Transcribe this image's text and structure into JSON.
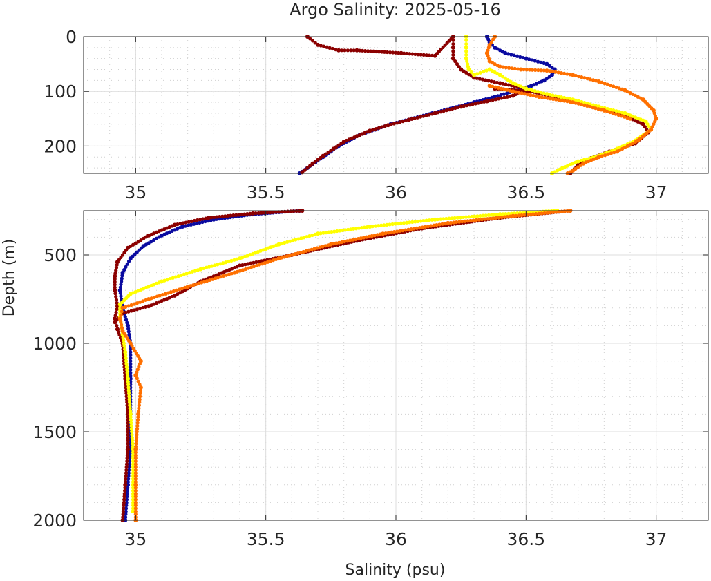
{
  "figure": {
    "title": "Argo Salinity: 2025-05-16",
    "xlabel": "Salinity (psu)",
    "ylabel": "Depth (m)"
  },
  "colors": {
    "series": [
      "#0a0aa0",
      "#8b0000",
      "#ffff00",
      "#ff7000"
    ],
    "grid_major": "#dcdcdc",
    "grid_minor": "#d0d0d0",
    "axes": "#262626"
  },
  "chart_data": [
    {
      "name": "upper",
      "type": "scatter",
      "xlim": [
        34.8,
        37.2
      ],
      "ylim": [
        0,
        250
      ],
      "y_reversed": true,
      "xticks": [
        35,
        35.5,
        36,
        36.5,
        37
      ],
      "xtick_labels": [
        "35",
        "35.5",
        "36",
        "36.5",
        "37"
      ],
      "yticks": [
        0,
        100,
        200
      ],
      "ytick_labels": [
        "0",
        "100",
        "200"
      ],
      "grid": true,
      "minor_grid": true,
      "series": [
        {
          "color": "#0a0aa0",
          "points": [
            [
              36.35,
              0
            ],
            [
              36.36,
              10
            ],
            [
              36.38,
              20
            ],
            [
              36.42,
              30
            ],
            [
              36.5,
              40
            ],
            [
              36.58,
              50
            ],
            [
              36.61,
              60
            ],
            [
              36.6,
              70
            ],
            [
              36.57,
              80
            ],
            [
              36.52,
              90
            ],
            [
              36.45,
              100
            ],
            [
              36.38,
              110
            ],
            [
              36.3,
              120
            ],
            [
              36.22,
              130
            ],
            [
              36.14,
              140
            ],
            [
              36.06,
              150
            ],
            [
              35.98,
              160
            ],
            [
              35.92,
              170
            ],
            [
              35.86,
              180
            ],
            [
              35.82,
              190
            ],
            [
              35.78,
              200
            ],
            [
              35.75,
              210
            ],
            [
              35.72,
              220
            ],
            [
              35.69,
              230
            ],
            [
              35.66,
              240
            ],
            [
              35.63,
              250
            ]
          ]
        },
        {
          "color": "#8b0000",
          "points": [
            [
              35.66,
              0
            ],
            [
              35.7,
              15
            ],
            [
              35.78,
              25
            ],
            [
              35.85,
              25
            ],
            [
              36.02,
              30
            ],
            [
              36.15,
              35
            ],
            [
              36.22,
              0
            ],
            [
              36.22,
              20
            ],
            [
              36.22,
              40
            ],
            [
              36.25,
              60
            ],
            [
              36.3,
              75
            ],
            [
              36.4,
              85
            ],
            [
              36.5,
              95
            ],
            [
              36.45,
              108
            ],
            [
              36.35,
              118
            ],
            [
              36.25,
              128
            ],
            [
              36.15,
              140
            ],
            [
              36.05,
              152
            ],
            [
              35.97,
              162
            ],
            [
              35.9,
              172
            ],
            [
              35.85,
              182
            ],
            [
              35.8,
              192
            ],
            [
              35.76,
              205
            ],
            [
              35.72,
              218
            ],
            [
              35.68,
              232
            ],
            [
              35.64,
              248
            ],
            [
              36.38,
              95
            ],
            [
              36.52,
              100
            ],
            [
              36.65,
              115
            ],
            [
              36.78,
              130
            ],
            [
              36.88,
              145
            ],
            [
              36.95,
              160
            ],
            [
              36.97,
              175
            ],
            [
              36.92,
              195
            ],
            [
              36.82,
              210
            ],
            [
              36.75,
              222
            ],
            [
              36.7,
              235
            ],
            [
              36.67,
              250
            ]
          ]
        },
        {
          "color": "#ffff00",
          "points": [
            [
              36.27,
              0
            ],
            [
              36.27,
              20
            ],
            [
              36.27,
              40
            ],
            [
              36.28,
              60
            ],
            [
              36.3,
              70
            ],
            [
              36.36,
              60
            ],
            [
              36.4,
              70
            ],
            [
              36.45,
              85
            ],
            [
              36.5,
              95
            ],
            [
              36.58,
              105
            ],
            [
              36.68,
              115
            ],
            [
              36.78,
              128
            ],
            [
              36.88,
              140
            ],
            [
              36.96,
              155
            ],
            [
              36.98,
              170
            ],
            [
              36.92,
              190
            ],
            [
              36.85,
              205
            ],
            [
              36.78,
              218
            ],
            [
              36.7,
              228
            ],
            [
              36.64,
              240
            ],
            [
              36.6,
              250
            ]
          ]
        },
        {
          "color": "#ff7000",
          "points": [
            [
              36.38,
              0
            ],
            [
              36.36,
              15
            ],
            [
              36.35,
              30
            ],
            [
              36.36,
              45
            ],
            [
              36.4,
              55
            ],
            [
              36.48,
              60
            ],
            [
              36.58,
              62
            ],
            [
              36.68,
              70
            ],
            [
              36.78,
              82
            ],
            [
              36.88,
              98
            ],
            [
              36.95,
              115
            ],
            [
              36.99,
              135
            ],
            [
              37.0,
              150
            ],
            [
              36.98,
              170
            ],
            [
              36.93,
              190
            ],
            [
              36.85,
              210
            ],
            [
              36.78,
              220
            ],
            [
              36.72,
              232
            ],
            [
              36.68,
              245
            ],
            [
              36.66,
              250
            ],
            [
              36.36,
              90
            ],
            [
              36.45,
              100
            ],
            [
              36.55,
              110
            ],
            [
              36.68,
              120
            ],
            [
              36.8,
              135
            ],
            [
              36.9,
              150
            ]
          ]
        }
      ]
    },
    {
      "name": "lower",
      "type": "scatter",
      "xlim": [
        34.8,
        37.2
      ],
      "ylim": [
        250,
        2000
      ],
      "y_reversed": true,
      "xticks": [
        35,
        35.5,
        36,
        36.5,
        37
      ],
      "xtick_labels": [
        "35",
        "35.5",
        "36",
        "36.5",
        "37"
      ],
      "yticks": [
        500,
        1000,
        1500,
        2000
      ],
      "ytick_labels": [
        "500",
        "1000",
        "1500",
        "2000"
      ],
      "grid": true,
      "minor_grid": true,
      "series": [
        {
          "color": "#0a0aa0",
          "points": [
            [
              35.63,
              250
            ],
            [
              35.45,
              270
            ],
            [
              35.3,
              300
            ],
            [
              35.18,
              340
            ],
            [
              35.1,
              390
            ],
            [
              35.03,
              450
            ],
            [
              34.98,
              520
            ],
            [
              34.95,
              600
            ],
            [
              34.94,
              700
            ],
            [
              34.95,
              800
            ],
            [
              34.97,
              900
            ],
            [
              34.98,
              1000
            ],
            [
              34.98,
              1200
            ],
            [
              34.98,
              1400
            ],
            [
              34.98,
              1600
            ],
            [
              34.97,
              1800
            ],
            [
              34.96,
              2000
            ]
          ]
        },
        {
          "color": "#8b0000",
          "points": [
            [
              35.64,
              250
            ],
            [
              35.45,
              265
            ],
            [
              35.28,
              290
            ],
            [
              35.15,
              330
            ],
            [
              35.05,
              390
            ],
            [
              34.97,
              460
            ],
            [
              34.93,
              540
            ],
            [
              34.92,
              620
            ],
            [
              34.92,
              700
            ],
            [
              34.93,
              790
            ],
            [
              34.92,
              860
            ],
            [
              34.93,
              920
            ],
            [
              34.95,
              1000
            ],
            [
              34.96,
              1200
            ],
            [
              34.97,
              1400
            ],
            [
              34.97,
              1600
            ],
            [
              34.96,
              1800
            ],
            [
              34.95,
              2000
            ],
            [
              36.67,
              250
            ],
            [
              36.4,
              290
            ],
            [
              36.1,
              350
            ],
            [
              35.85,
              420
            ],
            [
              35.6,
              500
            ],
            [
              35.4,
              560
            ],
            [
              35.25,
              650
            ],
            [
              35.15,
              730
            ],
            [
              35.05,
              790
            ],
            [
              34.95,
              830
            ],
            [
              34.92,
              880
            ]
          ]
        },
        {
          "color": "#ffff00",
          "points": [
            [
              36.62,
              250
            ],
            [
              36.4,
              270
            ],
            [
              36.15,
              300
            ],
            [
              35.9,
              340
            ],
            [
              35.7,
              380
            ],
            [
              35.55,
              440
            ],
            [
              35.4,
              520
            ],
            [
              35.25,
              580
            ],
            [
              35.1,
              650
            ],
            [
              34.98,
              720
            ],
            [
              34.94,
              780
            ],
            [
              34.94,
              850
            ],
            [
              34.95,
              950
            ],
            [
              34.96,
              1050
            ],
            [
              34.97,
              1200
            ],
            [
              34.98,
              1400
            ],
            [
              34.99,
              1600
            ],
            [
              34.99,
              1800
            ],
            [
              34.99,
              1950
            ]
          ]
        },
        {
          "color": "#ff7000",
          "points": [
            [
              36.67,
              250
            ],
            [
              36.45,
              280
            ],
            [
              36.2,
              320
            ],
            [
              35.95,
              380
            ],
            [
              35.75,
              440
            ],
            [
              35.55,
              520
            ],
            [
              35.38,
              600
            ],
            [
              35.2,
              680
            ],
            [
              35.05,
              750
            ],
            [
              34.95,
              800
            ],
            [
              34.94,
              860
            ],
            [
              34.95,
              930
            ],
            [
              34.98,
              1000
            ],
            [
              35.02,
              1100
            ],
            [
              35.0,
              1180
            ],
            [
              35.02,
              1250
            ],
            [
              35.01,
              1400
            ],
            [
              35.0,
              1600
            ],
            [
              35.0,
              1800
            ],
            [
              35.0,
              2000
            ]
          ]
        }
      ]
    }
  ]
}
